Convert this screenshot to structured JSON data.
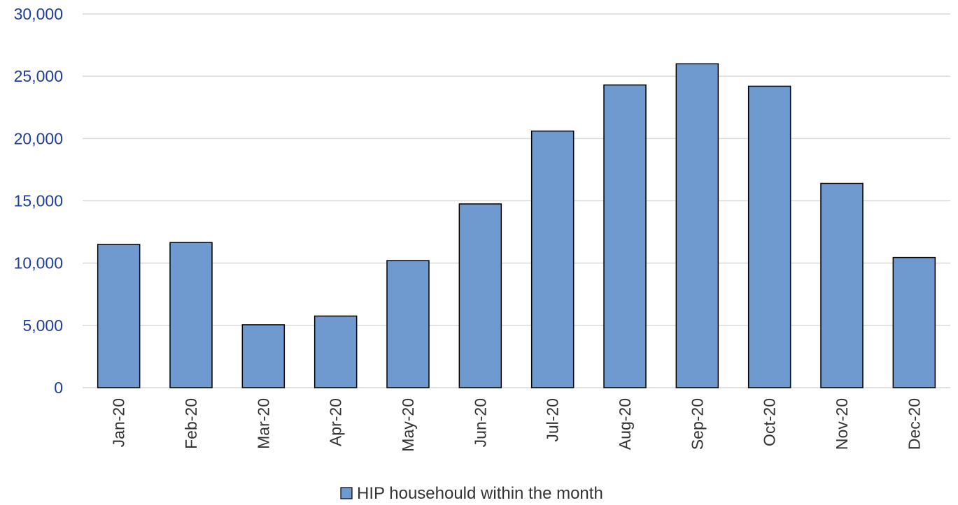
{
  "chart_data": {
    "type": "bar",
    "categories": [
      "Jan-20",
      "Feb-20",
      "Mar-20",
      "Apr-20",
      "May-20",
      "Jun-20",
      "Jul-20",
      "Aug-20",
      "Sep-20",
      "Oct-20",
      "Nov-20",
      "Dec-20"
    ],
    "series": [
      {
        "name": "HIP househould within the month",
        "values": [
          11500,
          11650,
          5050,
          5750,
          10200,
          14750,
          20600,
          24300,
          26000,
          24200,
          16400,
          10450
        ],
        "color": "#6f9ad0"
      }
    ],
    "yticks": [
      "0",
      "5,000",
      "10,000",
      "15,000",
      "20,000",
      "25,000",
      "30,000"
    ],
    "ylim": [
      0,
      30000
    ],
    "grid": true,
    "legend_position": "bottom"
  },
  "colors": {
    "tick_label_y": "#1f3d99",
    "gridline": "#d9d9d9",
    "bar_stroke": "#000000"
  }
}
